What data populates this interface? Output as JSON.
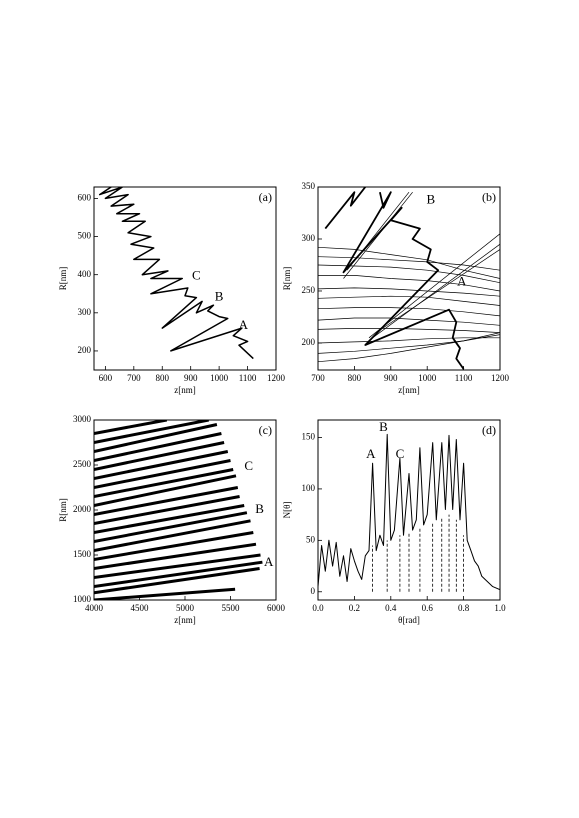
{
  "chart_data": [
    {
      "type": "line",
      "label": "(a)",
      "x_label": "z[nm]",
      "y_label": "R[nm]",
      "xlim": [
        560,
        1200
      ],
      "ylim": [
        150,
        630
      ],
      "xticks": [
        600,
        700,
        800,
        900,
        1000,
        1100,
        1200
      ],
      "yticks": [
        200,
        300,
        400,
        500,
        600
      ],
      "series": [
        {
          "color": "#000000",
          "line_width": 1.5,
          "x": [
            1120,
            1070,
            1100,
            1050,
            1080,
            830,
            1030,
            1000,
            960,
            980,
            920,
            940,
            800,
            920,
            880,
            890,
            760,
            870,
            760,
            820,
            730,
            790,
            700,
            770,
            690,
            760,
            680,
            740,
            660,
            720,
            640,
            700,
            620,
            680,
            600,
            660,
            580,
            640
          ],
          "values": [
            180,
            215,
            225,
            240,
            260,
            200,
            285,
            290,
            305,
            320,
            300,
            330,
            260,
            340,
            345,
            365,
            350,
            390,
            390,
            410,
            400,
            440,
            440,
            470,
            480,
            500,
            510,
            540,
            540,
            560,
            560,
            585,
            580,
            610,
            600,
            630,
            610,
            640
          ]
        }
      ],
      "annotations": [
        {
          "text": "A",
          "x": 1085,
          "y": 265
        },
        {
          "text": "B",
          "x": 1000,
          "y": 340
        },
        {
          "text": "C",
          "x": 920,
          "y": 395
        }
      ]
    },
    {
      "type": "line",
      "label": "(b)",
      "x_label": "z[nm]",
      "y_label": "R[nm]",
      "xlim": [
        700,
        1200
      ],
      "ylim": [
        174,
        350
      ],
      "xticks": [
        700,
        800,
        900,
        1000,
        1100,
        1200
      ],
      "yticks": [
        200,
        250,
        300,
        350
      ],
      "series": [
        {
          "color": "#000000",
          "line_width": 0.7,
          "x": [
            700,
            800,
            900,
            1000,
            1100,
            1200
          ],
          "values": [
            292,
            290,
            285,
            280,
            270,
            262
          ]
        },
        {
          "color": "#000000",
          "line_width": 0.7,
          "x": [
            700,
            800,
            900,
            1000,
            1100,
            1200
          ],
          "values": [
            283,
            282,
            280,
            278,
            275,
            270
          ]
        },
        {
          "color": "#000000",
          "line_width": 0.7,
          "x": [
            700,
            800,
            900,
            1000,
            1100,
            1200
          ],
          "values": [
            275,
            274,
            273,
            270,
            265,
            258
          ]
        },
        {
          "color": "#000000",
          "line_width": 0.7,
          "x": [
            700,
            800,
            900,
            1000,
            1100,
            1200
          ],
          "values": [
            265,
            265,
            262,
            260,
            256,
            250
          ]
        },
        {
          "color": "#000000",
          "line_width": 0.7,
          "x": [
            700,
            800,
            900,
            1000,
            1100,
            1200
          ],
          "values": [
            252,
            253,
            252,
            250,
            248,
            245
          ]
        },
        {
          "color": "#000000",
          "line_width": 0.7,
          "x": [
            700,
            800,
            900,
            1000,
            1100,
            1200
          ],
          "values": [
            243,
            244,
            245,
            244,
            240,
            236
          ]
        },
        {
          "color": "#000000",
          "line_width": 0.7,
          "x": [
            700,
            800,
            900,
            1000,
            1100,
            1200
          ],
          "values": [
            233,
            234,
            234,
            233,
            230,
            226
          ]
        },
        {
          "color": "#000000",
          "line_width": 0.7,
          "x": [
            700,
            800,
            900,
            1000,
            1100,
            1200
          ],
          "values": [
            222,
            224,
            224,
            222,
            220,
            217
          ]
        },
        {
          "color": "#000000",
          "line_width": 0.7,
          "x": [
            700,
            800,
            900,
            1000,
            1100,
            1200
          ],
          "values": [
            213,
            214,
            214,
            213,
            212,
            210
          ]
        },
        {
          "color": "#000000",
          "line_width": 0.7,
          "x": [
            700,
            800,
            900,
            1000,
            1100,
            1200
          ],
          "values": [
            200,
            201,
            202,
            204,
            205,
            205
          ]
        },
        {
          "color": "#000000",
          "line_width": 0.7,
          "x": [
            700,
            800,
            900,
            1000,
            1100,
            1200
          ],
          "values": [
            190,
            192,
            195,
            198,
            202,
            208
          ]
        },
        {
          "color": "#000000",
          "line_width": 0.7,
          "x": [
            700,
            800,
            900,
            1000,
            1100,
            1200
          ],
          "values": [
            182,
            185,
            190,
            196,
            202,
            210
          ]
        },
        {
          "color": "#000000",
          "line_width": 0.7,
          "x": [
            770,
            960
          ],
          "values": [
            262,
            345
          ]
        },
        {
          "color": "#000000",
          "line_width": 0.7,
          "x": [
            780,
            950
          ],
          "values": [
            270,
            345
          ]
        },
        {
          "color": "#000000",
          "line_width": 0.7,
          "x": [
            840,
            1200
          ],
          "values": [
            205,
            305
          ]
        },
        {
          "color": "#000000",
          "line_width": 0.7,
          "x": [
            850,
            1200
          ],
          "values": [
            205,
            295
          ]
        },
        {
          "color": "#000000",
          "line_width": 0.7,
          "x": [
            860,
            1200
          ],
          "values": [
            210,
            290
          ]
        },
        {
          "color": "#000000",
          "line_width": 1.8,
          "x": [
            1100,
            1080,
            1090,
            1070,
            1080,
            1060,
            830,
            1030,
            1000,
            1010,
            960,
            980,
            900,
            930,
            770,
            900,
            880,
            870
          ],
          "values": [
            175,
            185,
            195,
            205,
            220,
            232,
            198,
            270,
            278,
            290,
            300,
            310,
            318,
            330,
            268,
            345,
            330,
            345
          ]
        },
        {
          "color": "#000000",
          "line_width": 1.8,
          "x": [
            720,
            800,
            790,
            830
          ],
          "values": [
            310,
            345,
            332,
            350
          ]
        }
      ],
      "annotations": [
        {
          "text": "B",
          "x": 1010,
          "y": 337
        },
        {
          "text": "A",
          "x": 1095,
          "y": 258
        }
      ]
    },
    {
      "type": "line",
      "label": "(c)",
      "x_label": "z[nm]",
      "y_label": "R[nm]",
      "xlim": [
        4000,
        6000
      ],
      "ylim": [
        1000,
        3000
      ],
      "xticks": [
        4000,
        4500,
        5000,
        5500,
        6000
      ],
      "yticks": [
        1000,
        1500,
        2000,
        2500,
        3000
      ],
      "series": [
        {
          "color": "#000000",
          "line_width": 3,
          "x": [
            4000,
            5550
          ],
          "values": [
            1000,
            1120
          ]
        },
        {
          "color": "#000000",
          "line_width": 3,
          "x": [
            4000,
            5820
          ],
          "values": [
            1080,
            1350
          ]
        },
        {
          "color": "#000000",
          "line_width": 3,
          "x": [
            4000,
            5850
          ],
          "values": [
            1150,
            1420
          ]
        },
        {
          "color": "#000000",
          "line_width": 3,
          "x": [
            4000,
            5830
          ],
          "values": [
            1250,
            1500
          ]
        },
        {
          "color": "#000000",
          "line_width": 3,
          "x": [
            4000,
            5780
          ],
          "values": [
            1350,
            1620
          ]
        },
        {
          "color": "#000000",
          "line_width": 3,
          "x": [
            4000,
            5750
          ],
          "values": [
            1450,
            1750
          ]
        },
        {
          "color": "#000000",
          "line_width": 3,
          "x": [
            4000,
            5720
          ],
          "values": [
            1550,
            1880
          ]
        },
        {
          "color": "#000000",
          "line_width": 3,
          "x": [
            4000,
            5680
          ],
          "values": [
            1650,
            1970
          ]
        },
        {
          "color": "#000000",
          "line_width": 3,
          "x": [
            4000,
            5650
          ],
          "values": [
            1750,
            2050
          ]
        },
        {
          "color": "#000000",
          "line_width": 3,
          "x": [
            4000,
            5600
          ],
          "values": [
            1850,
            2150
          ]
        },
        {
          "color": "#000000",
          "line_width": 3,
          "x": [
            4000,
            5580
          ],
          "values": [
            1950,
            2250
          ]
        },
        {
          "color": "#000000",
          "line_width": 3,
          "x": [
            4000,
            5560
          ],
          "values": [
            2050,
            2380
          ]
        },
        {
          "color": "#000000",
          "line_width": 3,
          "x": [
            4000,
            5530
          ],
          "values": [
            2150,
            2450
          ]
        },
        {
          "color": "#000000",
          "line_width": 3,
          "x": [
            4000,
            5500
          ],
          "values": [
            2250,
            2550
          ]
        },
        {
          "color": "#000000",
          "line_width": 3,
          "x": [
            4000,
            5470
          ],
          "values": [
            2350,
            2650
          ]
        },
        {
          "color": "#000000",
          "line_width": 3,
          "x": [
            4000,
            5430
          ],
          "values": [
            2450,
            2750
          ]
        },
        {
          "color": "#000000",
          "line_width": 3,
          "x": [
            4000,
            5400
          ],
          "values": [
            2550,
            2850
          ]
        },
        {
          "color": "#000000",
          "line_width": 3,
          "x": [
            4000,
            5350
          ],
          "values": [
            2650,
            2950
          ]
        },
        {
          "color": "#000000",
          "line_width": 3,
          "x": [
            4000,
            5260
          ],
          "values": [
            2750,
            3000
          ]
        },
        {
          "color": "#000000",
          "line_width": 3,
          "x": [
            4000,
            4800
          ],
          "values": [
            2850,
            3000
          ]
        }
      ],
      "annotations": [
        {
          "text": "C",
          "x": 5700,
          "y": 2480
        },
        {
          "text": "B",
          "x": 5820,
          "y": 2000
        },
        {
          "text": "A",
          "x": 5920,
          "y": 1410
        }
      ]
    },
    {
      "type": "line",
      "label": "(d)",
      "x_label": "θ[rad]",
      "y_label": "N[θ]",
      "xlim": [
        0,
        1
      ],
      "ylim": [
        -8,
        167
      ],
      "xticks": [
        {
          "value": 0,
          "label": "0.0"
        },
        0.2,
        0.4,
        0.6,
        0.8,
        {
          "value": 1,
          "label": "1.0"
        }
      ],
      "yticks": [
        0,
        50,
        100,
        150
      ],
      "series": [
        {
          "color": "#000000",
          "line_width": 1,
          "x": [
            0,
            0.02,
            0.04,
            0.06,
            0.08,
            0.1,
            0.12,
            0.14,
            0.16,
            0.18,
            0.2,
            0.22,
            0.24,
            0.26,
            0.28,
            0.3,
            0.32,
            0.34,
            0.36,
            0.38,
            0.4,
            0.42,
            0.45,
            0.47,
            0.5,
            0.52,
            0.54,
            0.56,
            0.58,
            0.6,
            0.63,
            0.65,
            0.68,
            0.7,
            0.72,
            0.74,
            0.76,
            0.78,
            0.8,
            0.82,
            0.84,
            0.86,
            0.88,
            0.9,
            0.93,
            0.96,
            1.0
          ],
          "values": [
            5,
            45,
            20,
            50,
            25,
            48,
            15,
            35,
            10,
            42,
            30,
            20,
            12,
            35,
            40,
            125,
            40,
            55,
            45,
            153,
            50,
            60,
            130,
            55,
            115,
            60,
            70,
            140,
            65,
            75,
            145,
            70,
            145,
            80,
            152,
            80,
            148,
            70,
            125,
            50,
            40,
            30,
            25,
            15,
            10,
            5,
            2
          ]
        }
      ],
      "dashed_lines": {
        "x": [
          0.3,
          0.38,
          0.45,
          0.5,
          0.56,
          0.63,
          0.68,
          0.72,
          0.76,
          0.8
        ],
        "values": [
          45,
          50,
          55,
          58,
          62,
          68,
          72,
          75,
          70,
          55
        ]
      },
      "annotations": [
        {
          "text": "A",
          "x": 0.29,
          "y": 133
        },
        {
          "text": "B",
          "x": 0.36,
          "y": 159
        },
        {
          "text": "C",
          "x": 0.45,
          "y": 133
        }
      ]
    }
  ]
}
